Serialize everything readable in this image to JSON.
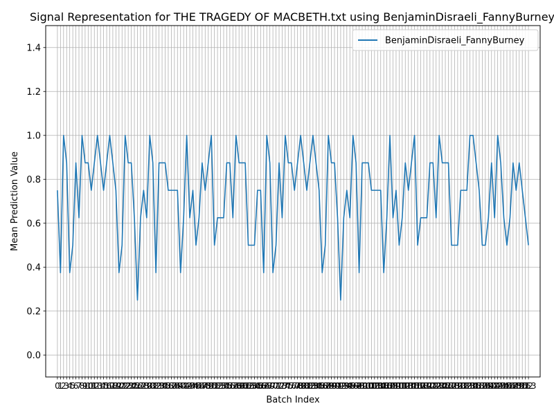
{
  "chart_data": {
    "type": "line",
    "title": "Signal Representation for THE TRAGEDY OF MACBETH.txt using BenjaminDisraeli_FannyBurney",
    "xlabel": "Batch Index",
    "ylabel": "Mean Prediction Value",
    "ylim": [
      -0.1,
      1.5
    ],
    "xlim": [
      -3.8,
      156.8
    ],
    "yticks": [
      "0.0",
      "0.2",
      "0.4",
      "0.6",
      "0.8",
      "1.0",
      "1.2",
      "1.4"
    ],
    "grid": true,
    "legend": "top-right",
    "line_color": "#1f77b4",
    "x": [
      0,
      1,
      2,
      3,
      4,
      5,
      6,
      7,
      8,
      9,
      10,
      11,
      12,
      13,
      14,
      15,
      16,
      17,
      18,
      19,
      20,
      21,
      22,
      23,
      24,
      25,
      26,
      27,
      28,
      29,
      30,
      31,
      32,
      33,
      34,
      35,
      36,
      37,
      38,
      39,
      40,
      41,
      42,
      43,
      44,
      45,
      46,
      47,
      48,
      49,
      50,
      51,
      52,
      53,
      54,
      55,
      56,
      57,
      58,
      59,
      60,
      61,
      62,
      63,
      64,
      65,
      66,
      67,
      68,
      69,
      70,
      71,
      72,
      73,
      74,
      75,
      76,
      77,
      78,
      79,
      80,
      81,
      82,
      83,
      84,
      85,
      86,
      87,
      88,
      89,
      90,
      91,
      92,
      93,
      94,
      95,
      96,
      97,
      98,
      99,
      100,
      101,
      102,
      103,
      104,
      105,
      106,
      107,
      108,
      109,
      110,
      111,
      112,
      113,
      114,
      115,
      116,
      117,
      118,
      119,
      120,
      121,
      122,
      123,
      124,
      125,
      126,
      127,
      128,
      129,
      130,
      131,
      132,
      133,
      134,
      135,
      136,
      137,
      138,
      139,
      140,
      141,
      142,
      143,
      144,
      145,
      146,
      147,
      148,
      149,
      150,
      151,
      152,
      153
    ],
    "series": [
      {
        "name": "BenjaminDisraeli_FannyBurney",
        "values": [
          0.75,
          0.375,
          1.0,
          0.875,
          0.375,
          0.5,
          0.875,
          0.625,
          1.0,
          0.875,
          0.875,
          0.75,
          0.875,
          1.0,
          0.875,
          0.75,
          0.875,
          1.0,
          0.875,
          0.75,
          0.375,
          0.5,
          1.0,
          0.875,
          0.875,
          0.625,
          0.25,
          0.625,
          0.75,
          0.625,
          1.0,
          0.875,
          0.375,
          0.875,
          0.875,
          0.875,
          0.75,
          0.75,
          0.75,
          0.75,
          0.375,
          0.625,
          1.0,
          0.625,
          0.75,
          0.5,
          0.625,
          0.875,
          0.75,
          0.875,
          1.0,
          0.5,
          0.625,
          0.625,
          0.625,
          0.875,
          0.875,
          0.625,
          1.0,
          0.875,
          0.875,
          0.875,
          0.5,
          0.5,
          0.5,
          0.75,
          0.75,
          0.375,
          1.0,
          0.875,
          0.375,
          0.5,
          0.875,
          0.625,
          1.0,
          0.875,
          0.875,
          0.75,
          0.875,
          1.0,
          0.875,
          0.75,
          0.875,
          1.0,
          0.875,
          0.75,
          0.375,
          0.5,
          1.0,
          0.875,
          0.875,
          0.625,
          0.25,
          0.625,
          0.75,
          0.625,
          1.0,
          0.875,
          0.375,
          0.875,
          0.875,
          0.875,
          0.75,
          0.75,
          0.75,
          0.75,
          0.375,
          0.625,
          1.0,
          0.625,
          0.75,
          0.5,
          0.625,
          0.875,
          0.75,
          0.875,
          1.0,
          0.5,
          0.625,
          0.625,
          0.625,
          0.875,
          0.875,
          0.625,
          1.0,
          0.875,
          0.875,
          0.875,
          0.5,
          0.5,
          0.5,
          0.75,
          0.75,
          0.75,
          1.0,
          1.0,
          0.875,
          0.75,
          0.5,
          0.5,
          0.625,
          0.875,
          0.625,
          1.0,
          0.875,
          0.625,
          0.5,
          0.625,
          0.875,
          0.75,
          0.875,
          0.75,
          0.625,
          0.5
        ]
      }
    ]
  }
}
